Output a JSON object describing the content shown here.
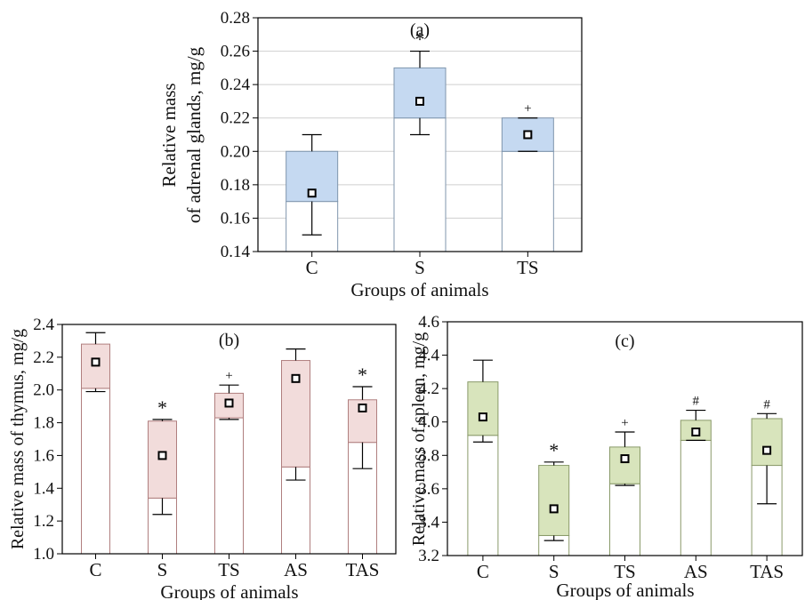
{
  "chart_data": [
    {
      "type": "box",
      "panel_label": "(a)",
      "ylabel_lines": [
        "Relative mass",
        "of adrenal glands, mg/g"
      ],
      "xlabel": "Groups of animals",
      "categories": [
        "C",
        "S",
        "TS"
      ],
      "ylim": [
        0.14,
        0.28
      ],
      "yticks": [
        0.14,
        0.16,
        0.18,
        0.2,
        0.22,
        0.24,
        0.26,
        0.28
      ],
      "ytick_labels": [
        "0.14",
        "0.16",
        "0.18",
        "0.20",
        "0.22",
        "0.24",
        "0.26",
        "0.28"
      ],
      "grid": true,
      "box_color": "#c5d9f1",
      "box_edge": "#7f95ad",
      "boxes": [
        {
          "category": "C",
          "low": 0.17,
          "high": 0.2,
          "mean": 0.175,
          "whisker_low": 0.15,
          "whisker_high": 0.21,
          "marker": ""
        },
        {
          "category": "S",
          "low": 0.22,
          "high": 0.25,
          "mean": 0.23,
          "whisker_low": 0.21,
          "whisker_high": 0.26,
          "marker": "*"
        },
        {
          "category": "TS",
          "low": 0.2,
          "high": 0.22,
          "mean": 0.21,
          "whisker_low": 0.2,
          "whisker_high": 0.22,
          "marker": "+"
        }
      ]
    },
    {
      "type": "box",
      "panel_label": "(b)",
      "ylabel_lines": [
        "Relative mass of thymus, mg/g"
      ],
      "xlabel": "Groups of animals",
      "categories": [
        "C",
        "S",
        "TS",
        "AS",
        "TAS"
      ],
      "ylim": [
        1.0,
        2.4
      ],
      "yticks": [
        1.0,
        1.2,
        1.4,
        1.6,
        1.8,
        2.0,
        2.2,
        2.4
      ],
      "ytick_labels": [
        "1.0",
        "1.2",
        "1.4",
        "1.6",
        "1.8",
        "2.0",
        "2.2",
        "2.4"
      ],
      "grid": false,
      "box_color": "#f2dcdb",
      "box_edge": "#b07f7f",
      "boxes": [
        {
          "category": "C",
          "low": 2.01,
          "high": 2.28,
          "mean": 2.17,
          "whisker_low": 1.99,
          "whisker_high": 2.35,
          "marker": ""
        },
        {
          "category": "S",
          "low": 1.34,
          "high": 1.81,
          "mean": 1.6,
          "whisker_low": 1.24,
          "whisker_high": 1.82,
          "marker": "*"
        },
        {
          "category": "TS",
          "low": 1.83,
          "high": 1.98,
          "mean": 1.92,
          "whisker_low": 1.82,
          "whisker_high": 2.03,
          "marker": "+"
        },
        {
          "category": "AS",
          "low": 1.53,
          "high": 2.18,
          "mean": 2.07,
          "whisker_low": 1.45,
          "whisker_high": 2.25,
          "marker": ""
        },
        {
          "category": "TAS",
          "low": 1.68,
          "high": 1.94,
          "mean": 1.89,
          "whisker_low": 1.52,
          "whisker_high": 2.02,
          "marker": "*"
        }
      ]
    },
    {
      "type": "box",
      "panel_label": "(c)",
      "ylabel_lines": [
        "Relative mass of spleen, mg/g"
      ],
      "xlabel": "Groups of animals",
      "categories": [
        "C",
        "S",
        "TS",
        "AS",
        "TAS"
      ],
      "ylim": [
        3.2,
        4.6
      ],
      "yticks": [
        3.2,
        3.4,
        3.6,
        3.8,
        4.0,
        4.2,
        4.4,
        4.6
      ],
      "ytick_labels": [
        "3.2",
        "3.4",
        "3.6",
        "3.8",
        "4.0",
        "4.2",
        "4.4",
        "4.6"
      ],
      "grid": false,
      "box_color": "#d8e4bc",
      "box_edge": "#8a9a6a",
      "boxes": [
        {
          "category": "C",
          "low": 3.92,
          "high": 4.24,
          "mean": 4.03,
          "whisker_low": 3.88,
          "whisker_high": 4.37,
          "marker": ""
        },
        {
          "category": "S",
          "low": 3.32,
          "high": 3.74,
          "mean": 3.48,
          "whisker_low": 3.29,
          "whisker_high": 3.76,
          "marker": "*"
        },
        {
          "category": "TS",
          "low": 3.63,
          "high": 3.85,
          "mean": 3.78,
          "whisker_low": 3.62,
          "whisker_high": 3.94,
          "marker": "+"
        },
        {
          "category": "AS",
          "low": 3.89,
          "high": 4.01,
          "mean": 3.94,
          "whisker_low": 3.89,
          "whisker_high": 4.07,
          "marker": "#"
        },
        {
          "category": "TAS",
          "low": 3.74,
          "high": 4.02,
          "mean": 3.83,
          "whisker_low": 3.51,
          "whisker_high": 4.05,
          "marker": "#"
        }
      ]
    }
  ]
}
